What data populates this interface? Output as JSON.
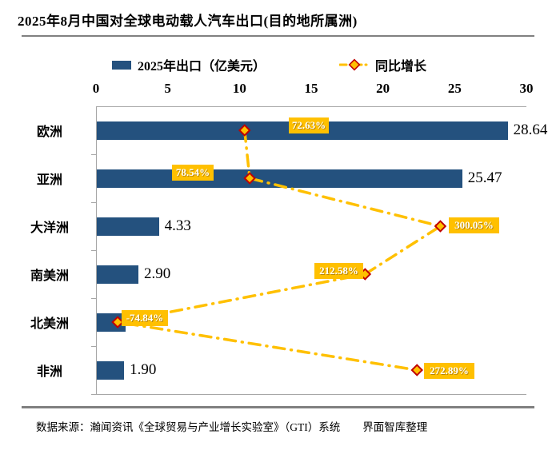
{
  "title": "2025年8月中国对全球电动载人汽车出口(目的地所属洲)",
  "legend": {
    "bar": "2025年出口（亿美元）",
    "growth": "同比增长"
  },
  "footer": {
    "source": "数据来源：瀚闻资讯《全球贸易与产业增长实验室》（GTI）系统",
    "credit": "界面智库整理"
  },
  "colors": {
    "bar": "#24517E",
    "growth": "#FFC000",
    "diamond_border": "#C00000",
    "axis_line": "#A6A6A6",
    "separator": "#808080",
    "label_text": "#FFFFFF"
  },
  "chart_data": {
    "type": "bar",
    "orientation": "horizontal",
    "title": "2025年8月中国对全球电动载人汽车出口(目的地所属洲)",
    "categories": [
      "欧洲",
      "亚洲",
      "大洋洲",
      "南美洲",
      "北美洲",
      "非洲"
    ],
    "series": [
      {
        "name": "2025年出口（亿美元）",
        "type": "bar",
        "values": [
          28.64,
          25.47,
          4.33,
          2.9,
          2.0,
          1.9
        ],
        "value_labels": [
          "28.64",
          "25.47",
          "4.33",
          "2.90",
          "2.00",
          "1.90"
        ]
      },
      {
        "name": "同比增长",
        "type": "line",
        "unit": "%",
        "values": [
          72.63,
          78.54,
          300.05,
          212.58,
          -74.84,
          272.89
        ],
        "value_labels": [
          "72.63%",
          "78.54%",
          "300.05%",
          "212.58%",
          "-74.84%",
          "272.89%"
        ]
      }
    ],
    "x_axis": {
      "ticks": [
        0,
        5,
        10,
        15,
        20,
        25,
        30
      ],
      "min": 0,
      "max": 30
    },
    "growth_axis": {
      "min": -100,
      "max": 400,
      "visible": false
    },
    "grid": false,
    "legend_position": "top"
  }
}
